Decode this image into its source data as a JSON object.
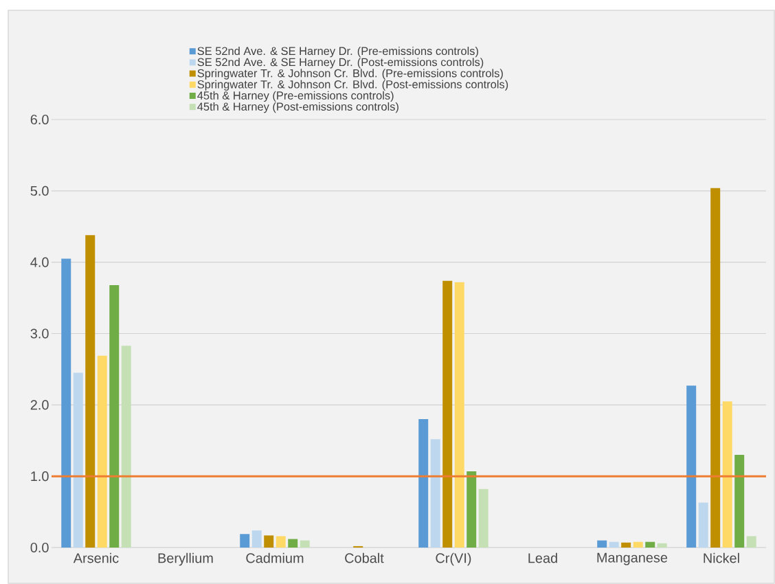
{
  "chart_data": {
    "type": "bar",
    "categories": [
      "Arsenic",
      "Beryllium",
      "Cadmium",
      "Cobalt",
      "Cr(VI)",
      "Lead",
      "Manganese",
      "Nickel"
    ],
    "series": [
      {
        "name": "SE 52nd Ave. & SE Harney Dr. (Pre-emissions controls)",
        "color": "#5b9bd5",
        "values": [
          4.05,
          0,
          0.19,
          0,
          1.8,
          0,
          0.1,
          2.27
        ]
      },
      {
        "name": "SE 52nd Ave. & SE Harney Dr. (Post-emissions controls)",
        "color": "#bdd7ee",
        "values": [
          2.45,
          0,
          0.24,
          0,
          1.52,
          0,
          0.08,
          0.63
        ]
      },
      {
        "name": "Springwater Tr. & Johnson Cr. Blvd. (Pre-emissions controls)",
        "color": "#bf8f00",
        "values": [
          4.38,
          0,
          0.17,
          0.02,
          3.74,
          0,
          0.07,
          5.04
        ]
      },
      {
        "name": "Springwater Tr. & Johnson Cr. Blvd. (Post-emissions controls)",
        "color": "#ffd966",
        "values": [
          2.69,
          0,
          0.16,
          0,
          3.72,
          0,
          0.08,
          2.05
        ]
      },
      {
        "name": "45th & Harney (Pre-emissions controls)",
        "color": "#70ad47",
        "values": [
          3.68,
          0,
          0.12,
          0,
          1.07,
          0,
          0.08,
          1.3
        ]
      },
      {
        "name": "45th & Harney (Post-emissions controls)",
        "color": "#c5e0b4",
        "values": [
          2.83,
          0,
          0.1,
          0,
          0.82,
          0,
          0.06,
          0.16
        ]
      }
    ],
    "ylim": [
      0,
      6
    ],
    "yticks": [
      {
        "value": 0,
        "label": "0.0"
      },
      {
        "value": 1,
        "label": "1.0"
      },
      {
        "value": 2,
        "label": "2.0"
      },
      {
        "value": 3,
        "label": "3.0"
      },
      {
        "value": 4,
        "label": "4.0"
      },
      {
        "value": 5,
        "label": "5.0"
      },
      {
        "value": 6,
        "label": "6.0"
      }
    ],
    "ref_lines": [
      {
        "axis": "y",
        "value": 1,
        "color": "#ed7d31"
      }
    ],
    "grid": "y",
    "legend": "top"
  }
}
